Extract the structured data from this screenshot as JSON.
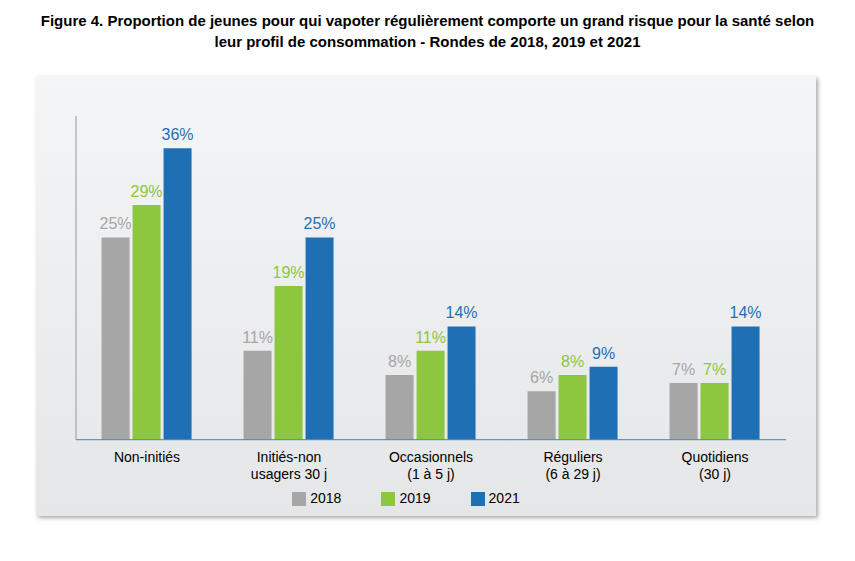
{
  "chart_data": {
    "type": "bar",
    "title": "Figure 4. Proportion de jeunes pour qui vapoter régulièrement comporte un grand risque pour la santé selon leur profil de consommation - Rondes de 2018, 2019 et 2021",
    "categories": [
      "Non-initiés",
      "Initiés-non usagers 30 j",
      "Occasionnels (1 à 5 j)",
      "Réguliers (6 à 29 j)",
      "Quotidiens (30 j)"
    ],
    "series": [
      {
        "name": "2018",
        "color": "#a6a6a6",
        "values": [
          25,
          11,
          8,
          6,
          7
        ],
        "value_labels": [
          "25%",
          "11%",
          "8%",
          "6%",
          "7%"
        ]
      },
      {
        "name": "2019",
        "color": "#8dc63f",
        "values": [
          29,
          19,
          11,
          8,
          7
        ],
        "value_labels": [
          "29%",
          "19%",
          "11%",
          "8%",
          "7%"
        ]
      },
      {
        "name": "2021",
        "color": "#1f6fb5",
        "values": [
          36,
          25,
          14,
          9,
          14
        ],
        "value_labels": [
          "36%",
          "25%",
          "14%",
          "9%",
          "14%"
        ]
      }
    ],
    "ylim": [
      0,
      40
    ],
    "grid": false,
    "legend": "bottom",
    "data_labels": true,
    "tick_labels": "x"
  }
}
